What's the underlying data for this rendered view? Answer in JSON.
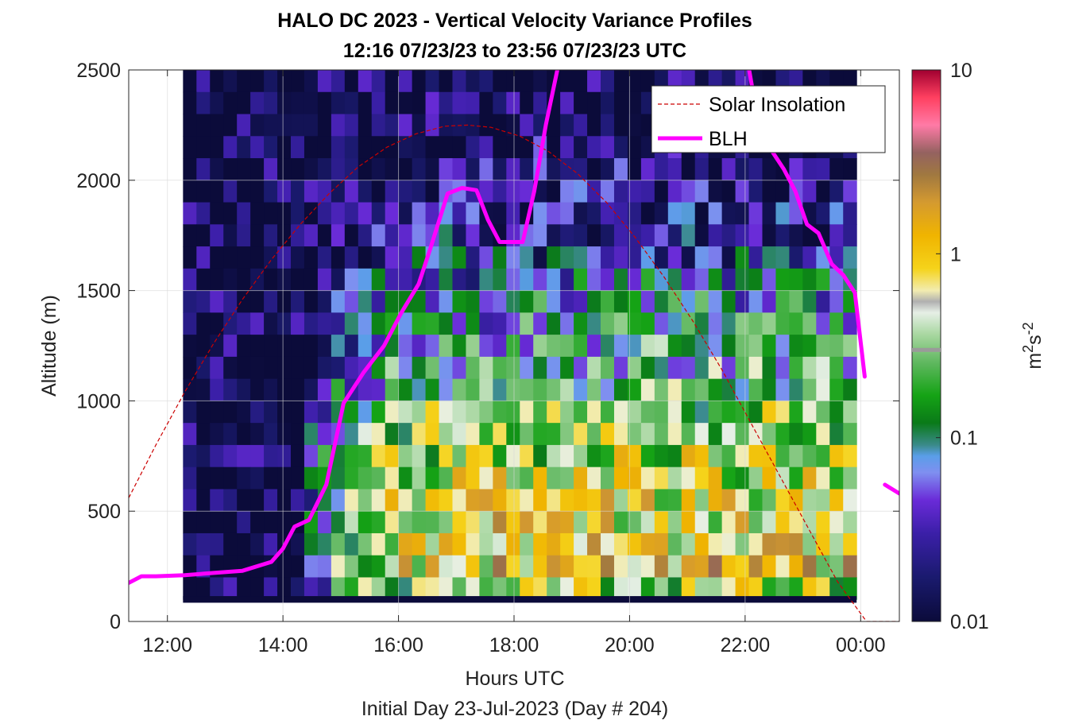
{
  "chart_data": {
    "type": "heatmap",
    "title": "HALO DC 2023 - Vertical Velocity Variance Profiles",
    "subtitle": "12:16 07/23/23 to 23:56 07/23/23  UTC",
    "xlabel": "Hours UTC",
    "xlabel2": "Initial Day 23-Jul-2023 (Day # 204)",
    "ylabel": "Altitude (m)",
    "xlim_hours": [
      11.33,
      24.67
    ],
    "ylim": [
      0,
      2500
    ],
    "xticks": [
      {
        "hour": 12,
        "label": "12:00"
      },
      {
        "hour": 14,
        "label": "14:00"
      },
      {
        "hour": 16,
        "label": "16:00"
      },
      {
        "hour": 18,
        "label": "18:00"
      },
      {
        "hour": 20,
        "label": "20:00"
      },
      {
        "hour": 22,
        "label": "22:00"
      },
      {
        "hour": 24,
        "label": "00:00"
      }
    ],
    "yticks": [
      0,
      500,
      1000,
      1500,
      2000,
      2500
    ],
    "grid": true,
    "legend": {
      "placement": "top-right",
      "entries": [
        {
          "label": "Solar Insolation",
          "style": "dashed",
          "color": "#cc0000"
        },
        {
          "label": "BLH",
          "style": "solid",
          "color": "#ff00ff"
        }
      ]
    },
    "colorbar": {
      "label_base": "m",
      "label_exp1": "2",
      "label_mid": "s",
      "label_exp2": "-2",
      "scale": "log",
      "range": [
        0.01,
        10
      ],
      "ticks": [
        "0.01",
        "0.1",
        "1",
        "10"
      ],
      "marker_value": 0.3
    },
    "heatmap": {
      "time_start_hour": 12.27,
      "time_end_hour": 23.93,
      "n_time_bins": 50,
      "alt_bins": [
        {
          "alt": 2450,
          "v": 0.012
        },
        {
          "alt": 2350,
          "v": 0.013
        },
        {
          "alt": 2250,
          "v": 0.014
        },
        {
          "alt": 2150,
          "v": 0.016
        },
        {
          "alt": 2050,
          "v": 0.018
        },
        {
          "alt": 1950,
          "v": 0.02
        },
        {
          "alt": 1850,
          "v": 0.024
        },
        {
          "alt": 1750,
          "v": 0.03
        },
        {
          "alt": 1650,
          "v": 0.04
        },
        {
          "alt": 1550,
          "v": 0.06
        },
        {
          "alt": 1450,
          "v": 0.08
        },
        {
          "alt": 1350,
          "v": 0.1
        },
        {
          "alt": 1250,
          "v": 0.13
        },
        {
          "alt": 1150,
          "v": 0.17
        },
        {
          "alt": 1050,
          "v": 0.22
        },
        {
          "alt": 950,
          "v": 0.28
        },
        {
          "alt": 850,
          "v": 0.35
        },
        {
          "alt": 750,
          "v": 0.42
        },
        {
          "alt": 650,
          "v": 0.5
        },
        {
          "alt": 550,
          "v": 0.6
        },
        {
          "alt": 450,
          "v": 0.7
        },
        {
          "alt": 350,
          "v": 0.8
        },
        {
          "alt": 250,
          "v": 0.9
        },
        {
          "alt": 150,
          "v": 0.4
        }
      ],
      "bottom_row": {
        "alt_range": [
          85,
          115
        ],
        "value": 0.01
      }
    },
    "series": [
      {
        "name": "Solar Insolation",
        "style": "dashed",
        "x_hours": [
          11.33,
          11.8,
          12.3,
          12.8,
          13.3,
          13.8,
          14.3,
          14.8,
          15.3,
          15.8,
          16.3,
          16.8,
          17.2,
          17.6,
          18.1,
          18.6,
          19.1,
          19.6,
          20.1,
          20.6,
          21.1,
          21.6,
          22.1,
          22.6,
          23.1,
          23.6,
          24.1,
          24.4,
          24.67
        ],
        "y": [
          560,
          800,
          1040,
          1260,
          1460,
          1640,
          1800,
          1940,
          2060,
          2150,
          2210,
          2245,
          2250,
          2240,
          2200,
          2130,
          2030,
          1900,
          1740,
          1560,
          1360,
          1140,
          900,
          660,
          420,
          180,
          0,
          0,
          0
        ]
      },
      {
        "name": "BLH",
        "style": "solid",
        "x_hours": [
          11.33,
          11.55,
          11.8,
          12.3,
          12.8,
          13.3,
          13.8,
          14.0,
          14.2,
          14.45,
          14.75,
          15.05,
          15.4,
          15.75,
          16.05,
          16.35,
          16.55,
          16.85,
          17.1,
          17.35,
          17.55,
          17.75,
          17.95,
          18.15,
          18.35,
          18.55,
          18.75
        ],
        "y": [
          175,
          205,
          205,
          210,
          220,
          230,
          270,
          330,
          430,
          460,
          620,
          990,
          1130,
          1250,
          1400,
          1530,
          1690,
          1940,
          1965,
          1955,
          1820,
          1720,
          1720,
          1720,
          1950,
          2250,
          2500
        ]
      },
      {
        "name": "",
        "style": "solid",
        "x_hours": [
          22.07,
          22.27,
          22.47,
          22.67,
          22.87,
          23.07,
          23.27,
          23.5,
          23.7,
          23.9,
          24.07
        ],
        "y": [
          2500,
          2200,
          2130,
          2050,
          1950,
          1800,
          1760,
          1620,
          1570,
          1490,
          1110
        ]
      },
      {
        "name": "",
        "style": "solid",
        "x_hours": [
          24.42,
          24.67
        ],
        "y": [
          620,
          580
        ]
      }
    ]
  }
}
